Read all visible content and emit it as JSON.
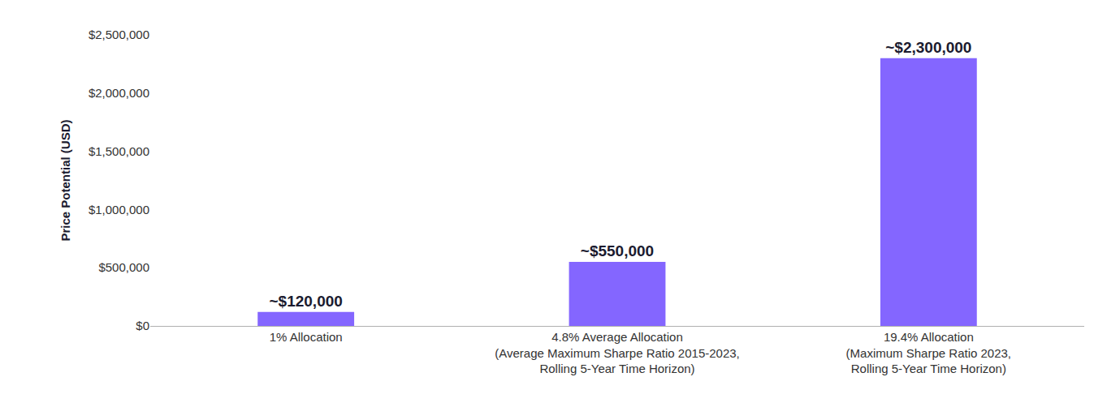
{
  "chart_data": {
    "type": "bar",
    "y_label": "Price Potential (USD)",
    "categories": [
      "1% Allocation",
      "4.8% Average Allocation\n(Average Maximum Sharpe Ratio 2015-2023,\nRolling 5-Year Time Horizon)",
      "19.4% Allocation\n(Maximum Sharpe Ratio 2023,\nRolling 5-Year Time Horizon)"
    ],
    "values": [
      120000,
      550000,
      2300000
    ],
    "value_labels": [
      "~$120,000",
      "~$550,000",
      "~$2,300,000"
    ],
    "data_labels": true,
    "color": "#8466ff",
    "ylim": [
      0,
      2500000
    ],
    "yticks": [
      {
        "value": 0,
        "label": "$0"
      },
      {
        "value": 500000,
        "label": "$500,000"
      },
      {
        "value": 1000000,
        "label": "$1,000,000"
      },
      {
        "value": 1500000,
        "label": "$1,500,000"
      },
      {
        "value": 2000000,
        "label": "$2,000,000"
      },
      {
        "value": 2500000,
        "label": "$2,500,000"
      }
    ],
    "grid": false
  }
}
